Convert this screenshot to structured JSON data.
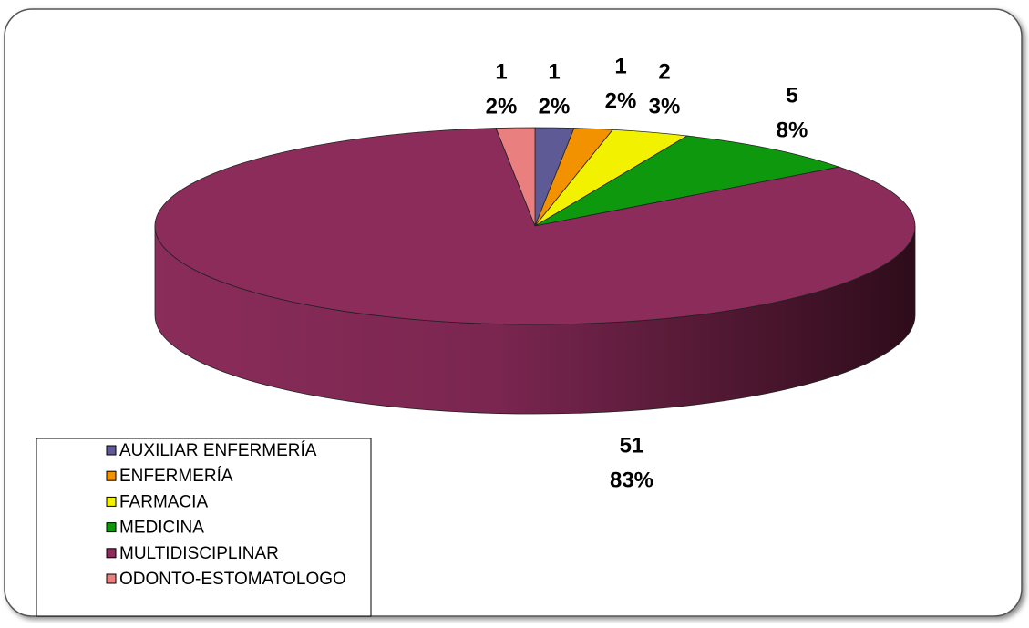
{
  "chart_data": {
    "type": "pie3d",
    "categories": [
      "AUXILIAR ENFERMERÍA",
      "ENFERMERÍA",
      "FARMACIA",
      "MEDICINA",
      "MULTIDISCIPLINAR",
      "ODONTO-ESTOMATOLOGO"
    ],
    "values": [
      1,
      1,
      2,
      5,
      51,
      1
    ],
    "percent_labels": [
      "2%",
      "2%",
      "3%",
      "8%",
      "83%",
      "2%"
    ],
    "colors": [
      "#5e5a96",
      "#f39200",
      "#f2f200",
      "#0e980e",
      "#8b2c5a",
      "#ea7f7f"
    ],
    "legend": "bottom-left"
  }
}
